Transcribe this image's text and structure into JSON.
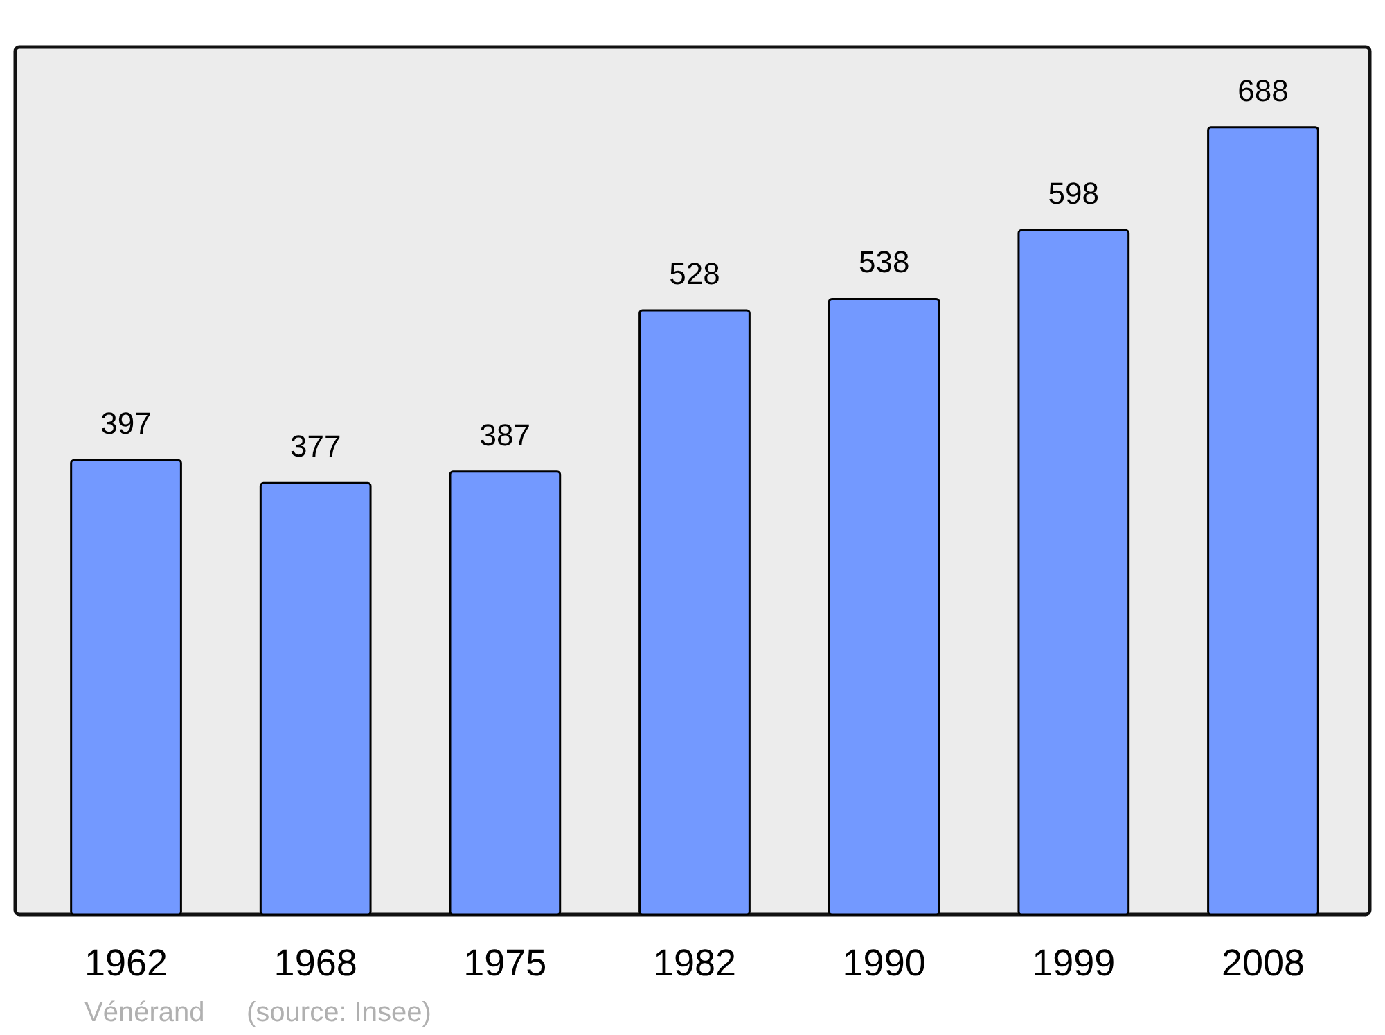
{
  "chart_data": {
    "type": "bar",
    "categories": [
      "1962",
      "1968",
      "1975",
      "1982",
      "1990",
      "1999",
      "2008"
    ],
    "values": [
      397,
      377,
      387,
      528,
      538,
      598,
      688
    ],
    "color": "#7399ff",
    "data_labels": true,
    "annotations": [
      "Vénérand",
      "(source: Insee)"
    ]
  }
}
